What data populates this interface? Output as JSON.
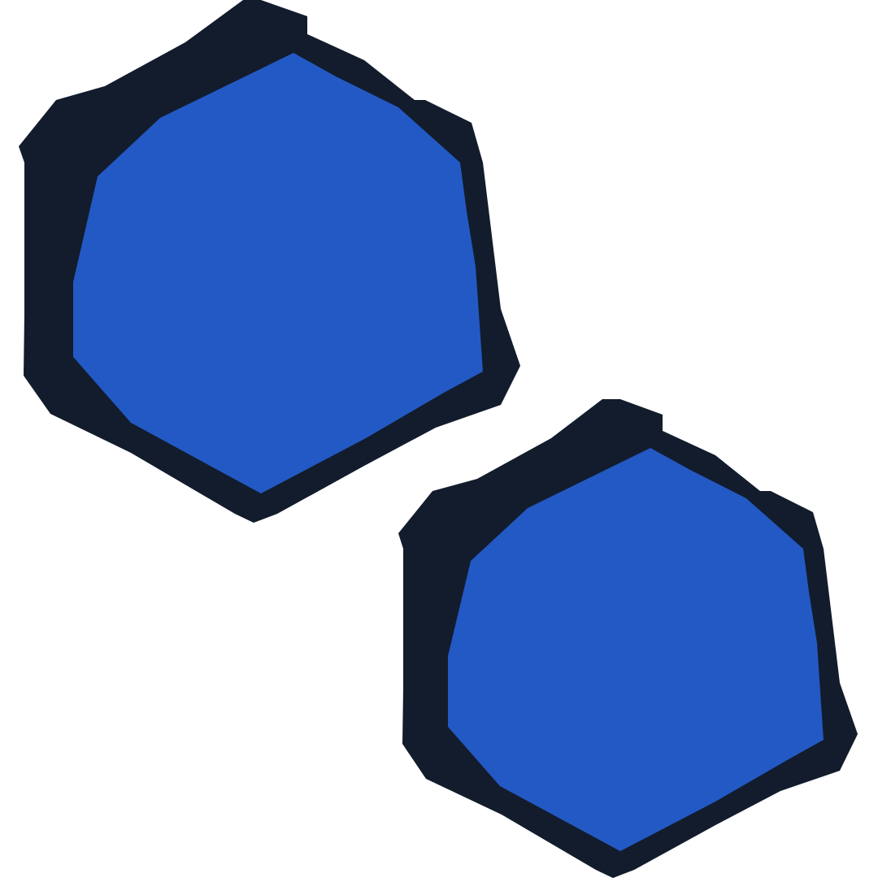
{
  "shapes": [
    {
      "name": "hexagon-shape-top-left",
      "outline_color": "#121c2c",
      "fill_color": "#2359c4"
    },
    {
      "name": "hexagon-shape-bottom-right",
      "outline_color": "#121c2c",
      "fill_color": "#2359c4"
    }
  ],
  "background_color": "#ffffff"
}
